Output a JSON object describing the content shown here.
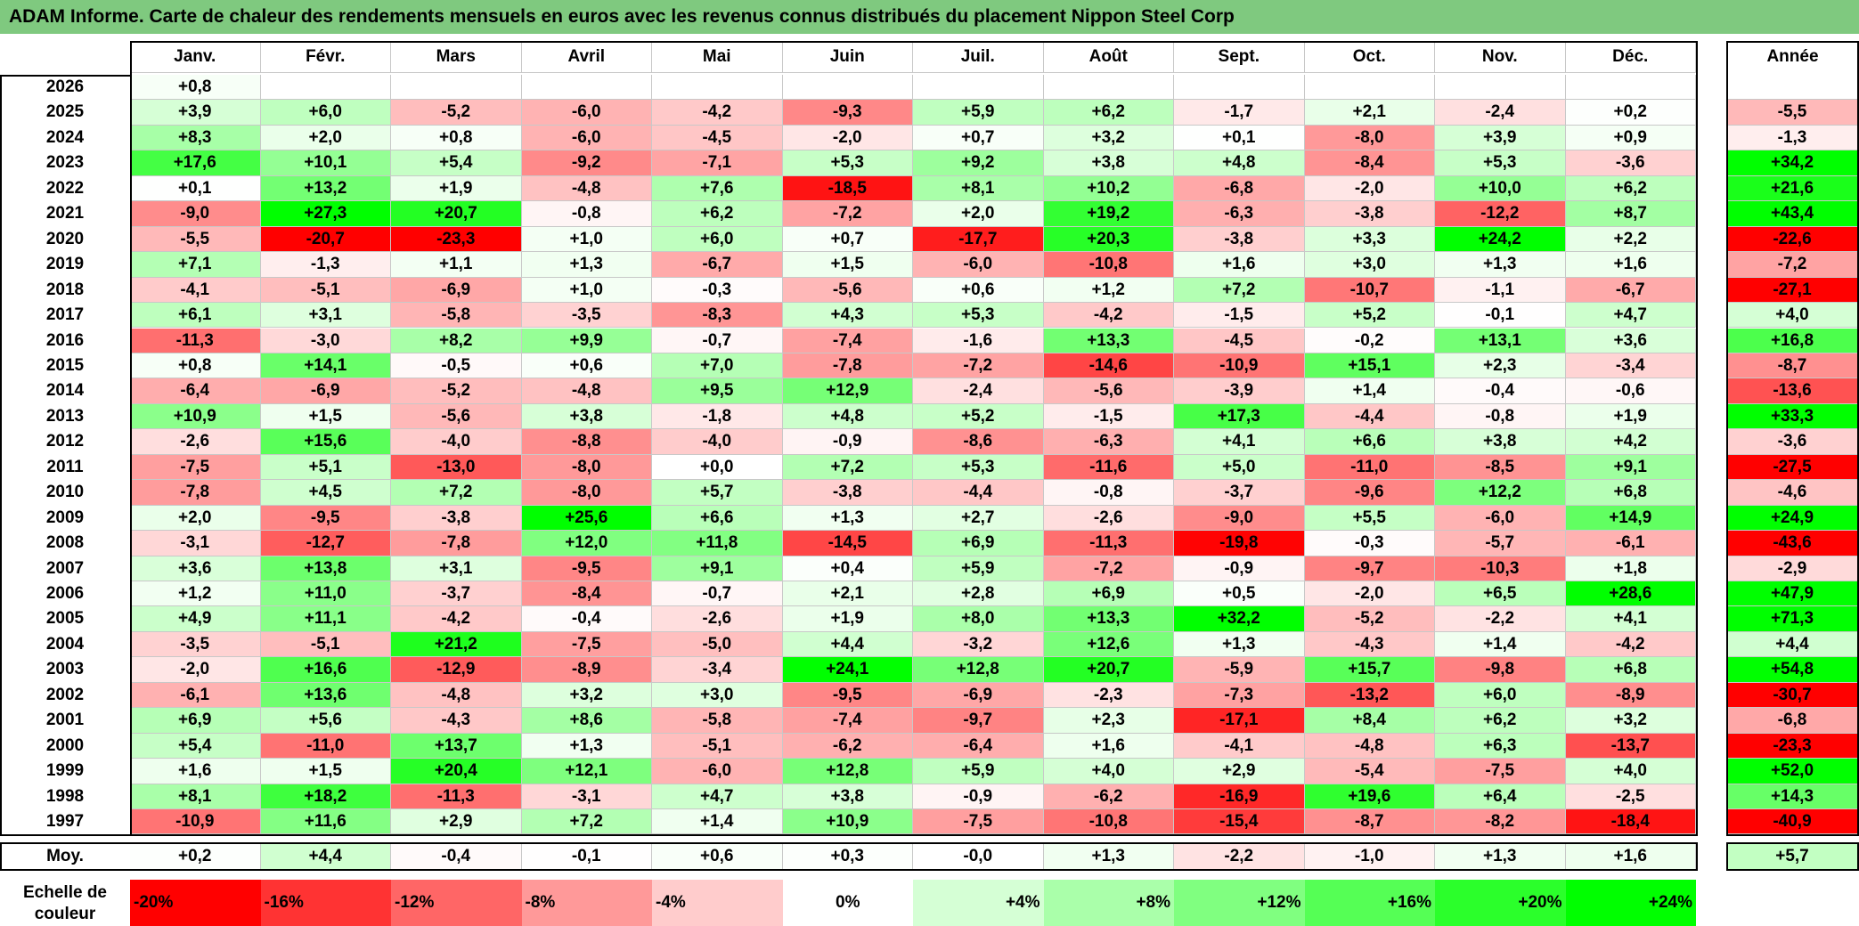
{
  "title": "ADAM Informe. Carte de chaleur des rendements mensuels en euros avec les revenus connus distribués du placement Nippon Steel Corp",
  "colors": {
    "title_bg": "#7fc97f",
    "neg_max": "#ff0000",
    "pos_max": "#00ff00",
    "neutral": "#ffffff"
  },
  "chart_data": {
    "type": "heatmap",
    "title": "ADAM Informe. Carte de chaleur des rendements mensuels en euros avec les revenus connus distribués du placement Nippon Steel Corp",
    "months": [
      "Janv.",
      "Févr.",
      "Mars",
      "Avril",
      "Mai",
      "Juin",
      "Juil.",
      "Août",
      "Sept.",
      "Oct.",
      "Nov.",
      "Déc."
    ],
    "year_header": "Année",
    "avg_label": "Moy.",
    "rows": [
      {
        "year": "2026",
        "values": [
          "+0,8",
          "",
          "",
          "",
          "",
          "",
          "",
          "",
          "",
          "",
          "",
          ""
        ],
        "annual": ""
      },
      {
        "year": "2025",
        "values": [
          "+3,9",
          "+6,0",
          "-5,2",
          "-6,0",
          "-4,2",
          "-9,3",
          "+5,9",
          "+6,2",
          "-1,7",
          "+2,1",
          "-2,4",
          "+0,2"
        ],
        "annual": "-5,5"
      },
      {
        "year": "2024",
        "values": [
          "+8,3",
          "+2,0",
          "+0,8",
          "-6,0",
          "-4,5",
          "-2,0",
          "+0,7",
          "+3,2",
          "+0,1",
          "-8,0",
          "+3,9",
          "+0,9"
        ],
        "annual": "-1,3"
      },
      {
        "year": "2023",
        "values": [
          "+17,6",
          "+10,1",
          "+5,4",
          "-9,2",
          "-7,1",
          "+5,3",
          "+9,2",
          "+3,8",
          "+4,8",
          "-8,4",
          "+5,3",
          "-3,6"
        ],
        "annual": "+34,2"
      },
      {
        "year": "2022",
        "values": [
          "+0,1",
          "+13,2",
          "+1,9",
          "-4,8",
          "+7,6",
          "-18,5",
          "+8,1",
          "+10,2",
          "-6,8",
          "-2,0",
          "+10,0",
          "+6,2"
        ],
        "annual": "+21,6"
      },
      {
        "year": "2021",
        "values": [
          "-9,0",
          "+27,3",
          "+20,7",
          "-0,8",
          "+6,2",
          "-7,2",
          "+2,0",
          "+19,2",
          "-6,3",
          "-3,8",
          "-12,2",
          "+8,7"
        ],
        "annual": "+43,4"
      },
      {
        "year": "2020",
        "values": [
          "-5,5",
          "-20,7",
          "-23,3",
          "+1,0",
          "+6,0",
          "+0,7",
          "-17,7",
          "+20,3",
          "-3,8",
          "+3,3",
          "+24,2",
          "+2,2"
        ],
        "annual": "-22,6"
      },
      {
        "year": "2019",
        "values": [
          "+7,1",
          "-1,3",
          "+1,1",
          "+1,3",
          "-6,7",
          "+1,5",
          "-6,0",
          "-10,8",
          "+1,6",
          "+3,0",
          "+1,3",
          "+1,6"
        ],
        "annual": "-7,2"
      },
      {
        "year": "2018",
        "values": [
          "-4,1",
          "-5,1",
          "-6,9",
          "+1,0",
          "-0,3",
          "-5,6",
          "+0,6",
          "+1,2",
          "+7,2",
          "-10,7",
          "-1,1",
          "-6,7"
        ],
        "annual": "-27,1"
      },
      {
        "year": "2017",
        "values": [
          "+6,1",
          "+3,1",
          "-5,8",
          "-3,5",
          "-8,3",
          "+4,3",
          "+5,3",
          "-4,2",
          "-1,5",
          "+5,2",
          "-0,1",
          "+4,7"
        ],
        "annual": "+4,0"
      },
      {
        "year": "2016",
        "values": [
          "-11,3",
          "-3,0",
          "+8,2",
          "+9,9",
          "-0,7",
          "-7,4",
          "-1,6",
          "+13,3",
          "-4,5",
          "-0,2",
          "+13,1",
          "+3,6"
        ],
        "annual": "+16,8"
      },
      {
        "year": "2015",
        "values": [
          "+0,8",
          "+14,1",
          "-0,5",
          "+0,6",
          "+7,0",
          "-7,8",
          "-7,2",
          "-14,6",
          "-10,9",
          "+15,1",
          "+2,3",
          "-3,4"
        ],
        "annual": "-8,7"
      },
      {
        "year": "2014",
        "values": [
          "-6,4",
          "-6,9",
          "-5,2",
          "-4,8",
          "+9,5",
          "+12,9",
          "-2,4",
          "-5,6",
          "-3,9",
          "+1,4",
          "-0,4",
          "-0,6"
        ],
        "annual": "-13,6"
      },
      {
        "year": "2013",
        "values": [
          "+10,9",
          "+1,5",
          "-5,6",
          "+3,8",
          "-1,8",
          "+4,8",
          "+5,2",
          "-1,5",
          "+17,3",
          "-4,4",
          "-0,8",
          "+1,9"
        ],
        "annual": "+33,3"
      },
      {
        "year": "2012",
        "values": [
          "-2,6",
          "+15,6",
          "-4,0",
          "-8,8",
          "-4,0",
          "-0,9",
          "-8,6",
          "-6,3",
          "+4,1",
          "+6,6",
          "+3,8",
          "+4,2"
        ],
        "annual": "-3,6"
      },
      {
        "year": "2011",
        "values": [
          "-7,5",
          "+5,1",
          "-13,0",
          "-8,0",
          "+0,0",
          "+7,2",
          "+5,3",
          "-11,6",
          "+5,0",
          "-11,0",
          "-8,5",
          "+9,1"
        ],
        "annual": "-27,5"
      },
      {
        "year": "2010",
        "values": [
          "-7,8",
          "+4,5",
          "+7,2",
          "-8,0",
          "+5,7",
          "-3,8",
          "-4,4",
          "-0,8",
          "-3,7",
          "-9,6",
          "+12,2",
          "+6,8"
        ],
        "annual": "-4,6"
      },
      {
        "year": "2009",
        "values": [
          "+2,0",
          "-9,5",
          "-3,8",
          "+25,6",
          "+6,6",
          "+1,3",
          "+2,7",
          "-2,6",
          "-9,0",
          "+5,5",
          "-6,0",
          "+14,9"
        ],
        "annual": "+24,9"
      },
      {
        "year": "2008",
        "values": [
          "-3,1",
          "-12,7",
          "-7,8",
          "+12,0",
          "+11,8",
          "-14,5",
          "+6,9",
          "-11,3",
          "-19,8",
          "-0,3",
          "-5,7",
          "-6,1"
        ],
        "annual": "-43,6"
      },
      {
        "year": "2007",
        "values": [
          "+3,6",
          "+13,8",
          "+3,1",
          "-9,5",
          "+9,1",
          "+0,4",
          "+5,9",
          "-7,2",
          "-0,9",
          "-9,7",
          "-10,3",
          "+1,8"
        ],
        "annual": "-2,9"
      },
      {
        "year": "2006",
        "values": [
          "+1,2",
          "+11,0",
          "-3,7",
          "-8,4",
          "-0,7",
          "+2,1",
          "+2,8",
          "+6,9",
          "+0,5",
          "-2,0",
          "+6,5",
          "+28,6"
        ],
        "annual": "+47,9"
      },
      {
        "year": "2005",
        "values": [
          "+4,9",
          "+11,1",
          "-4,2",
          "-0,4",
          "-2,6",
          "+1,9",
          "+8,0",
          "+13,3",
          "+32,2",
          "-5,2",
          "-2,2",
          "+4,1"
        ],
        "annual": "+71,3"
      },
      {
        "year": "2004",
        "values": [
          "-3,5",
          "-5,1",
          "+21,2",
          "-7,5",
          "-5,0",
          "+4,4",
          "-3,2",
          "+12,6",
          "+1,3",
          "-4,3",
          "+1,4",
          "-4,2"
        ],
        "annual": "+4,4"
      },
      {
        "year": "2003",
        "values": [
          "-2,0",
          "+16,6",
          "-12,9",
          "-8,9",
          "-3,4",
          "+24,1",
          "+12,8",
          "+20,7",
          "-5,9",
          "+15,7",
          "-9,8",
          "+6,8"
        ],
        "annual": "+54,8"
      },
      {
        "year": "2002",
        "values": [
          "-6,1",
          "+13,6",
          "-4,8",
          "+3,2",
          "+3,0",
          "-9,5",
          "-6,9",
          "-2,3",
          "-7,3",
          "-13,2",
          "+6,0",
          "-8,9"
        ],
        "annual": "-30,7"
      },
      {
        "year": "2001",
        "values": [
          "+6,9",
          "+5,6",
          "-4,3",
          "+8,6",
          "-5,8",
          "-7,4",
          "-9,7",
          "+2,3",
          "-17,1",
          "+8,4",
          "+6,2",
          "+3,2"
        ],
        "annual": "-6,8"
      },
      {
        "year": "2000",
        "values": [
          "+5,4",
          "-11,0",
          "+13,7",
          "+1,3",
          "-5,1",
          "-6,2",
          "-6,4",
          "+1,6",
          "-4,1",
          "-4,8",
          "+6,3",
          "-13,7"
        ],
        "annual": "-23,3"
      },
      {
        "year": "1999",
        "values": [
          "+1,6",
          "+1,5",
          "+20,4",
          "+12,1",
          "-6,0",
          "+12,8",
          "+5,9",
          "+4,0",
          "+2,9",
          "-5,4",
          "-7,5",
          "+4,0"
        ],
        "annual": "+52,0"
      },
      {
        "year": "1998",
        "values": [
          "+8,1",
          "+18,2",
          "-11,3",
          "-3,1",
          "+4,7",
          "+3,8",
          "-0,9",
          "-6,2",
          "-16,9",
          "+19,6",
          "+6,4",
          "-2,5"
        ],
        "annual": "+14,3"
      },
      {
        "year": "1997",
        "values": [
          "-10,9",
          "+11,6",
          "+2,9",
          "+7,2",
          "+1,4",
          "+10,9",
          "-7,5",
          "-10,8",
          "-15,4",
          "-8,7",
          "-8,2",
          "-18,4"
        ],
        "annual": "-40,9"
      }
    ],
    "average": {
      "values": [
        "+0,2",
        "+4,4",
        "-0,4",
        "-0,1",
        "+0,6",
        "+0,3",
        "-0,0",
        "+1,3",
        "-2,2",
        "-1,0",
        "+1,3",
        "+1,6"
      ],
      "annual": "+5,7"
    },
    "scale": {
      "label": "Echelle de couleur",
      "items": [
        "-20%",
        "-16%",
        "-12%",
        "-8%",
        "-4%",
        "0%",
        "+4%",
        "+8%",
        "+12%",
        "+16%",
        "+20%",
        "+24%"
      ],
      "values": [
        -20,
        -16,
        -12,
        -8,
        -4,
        0,
        4,
        8,
        12,
        16,
        20,
        24
      ]
    },
    "color_range": {
      "min": -20,
      "max": 24
    }
  }
}
